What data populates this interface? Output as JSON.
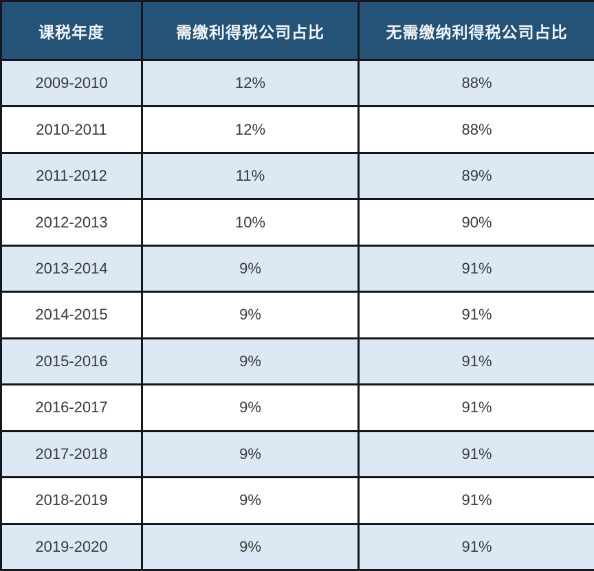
{
  "colors": {
    "header_bg": "#255377",
    "header_text": "#f2f6fa",
    "row_alt_bg": "#dce9f5",
    "row_bg": "#ffffff",
    "border": "#16161e",
    "cell_text": "#3a3a3a"
  },
  "table": {
    "columns": [
      "课税年度",
      "需缴利得税公司占比",
      "无需缴纳利得税公司占比"
    ],
    "rows": [
      [
        "2009-2010",
        "12%",
        "88%"
      ],
      [
        "2010-2011",
        "12%",
        "88%"
      ],
      [
        "2011-2012",
        "11%",
        "89%"
      ],
      [
        "2012-2013",
        "10%",
        "90%"
      ],
      [
        "2013-2014",
        "9%",
        "91%"
      ],
      [
        "2014-2015",
        "9%",
        "91%"
      ],
      [
        "2015-2016",
        "9%",
        "91%"
      ],
      [
        "2016-2017",
        "9%",
        "91%"
      ],
      [
        "2017-2018",
        "9%",
        "91%"
      ],
      [
        "2018-2019",
        "9%",
        "91%"
      ],
      [
        "2019-2020",
        "9%",
        "91%"
      ]
    ]
  },
  "chart_data": {
    "type": "table",
    "title": "",
    "categories": [
      "2009-2010",
      "2010-2011",
      "2011-2012",
      "2012-2013",
      "2013-2014",
      "2014-2015",
      "2015-2016",
      "2016-2017",
      "2017-2018",
      "2018-2019",
      "2019-2020"
    ],
    "category_label": "课税年度",
    "series": [
      {
        "name": "需缴利得税公司占比",
        "unit": "%",
        "values": [
          12,
          12,
          11,
          10,
          9,
          9,
          9,
          9,
          9,
          9,
          9
        ]
      },
      {
        "name": "无需缴纳利得税公司占比",
        "unit": "%",
        "values": [
          88,
          88,
          89,
          90,
          91,
          91,
          91,
          91,
          91,
          91,
          91
        ]
      }
    ],
    "layout_hints": {
      "header_background": "#255377",
      "alternating_rows": true,
      "grid": "solid dark borders"
    }
  }
}
